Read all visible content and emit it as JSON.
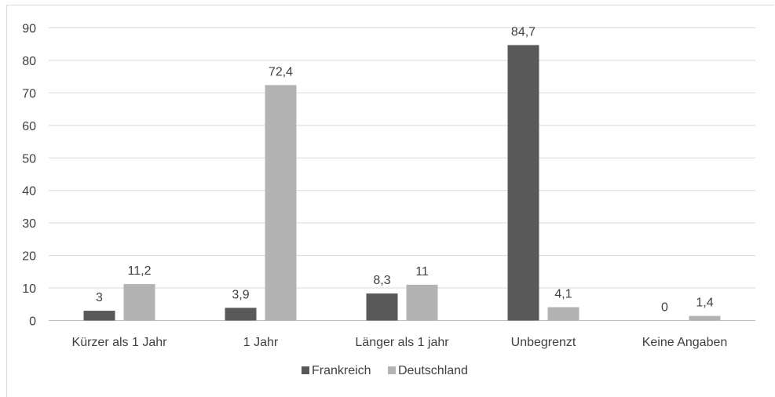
{
  "chart_data": {
    "type": "bar",
    "categories": [
      "Kürzer als 1 Jahr",
      "1 Jahr",
      "Länger als 1 jahr",
      "Unbegrenzt",
      "Keine Angaben"
    ],
    "series": [
      {
        "name": "Frankreich",
        "values": [
          3,
          3.9,
          8.3,
          84.7,
          0
        ],
        "labels": [
          "3",
          "3,9",
          "8,3",
          "84,7",
          "0"
        ],
        "color": "#595959"
      },
      {
        "name": "Deutschland",
        "values": [
          11.2,
          72.4,
          11,
          4.1,
          1.4
        ],
        "labels": [
          "11,2",
          "72,4",
          "11",
          "4,1",
          "1,4"
        ],
        "color": "#b3b3b3"
      }
    ],
    "yticks": [
      "0",
      "10",
      "20",
      "30",
      "40",
      "50",
      "60",
      "70",
      "80",
      "90"
    ],
    "ylim": [
      0,
      90
    ],
    "grid": true,
    "legend": "bottom"
  }
}
